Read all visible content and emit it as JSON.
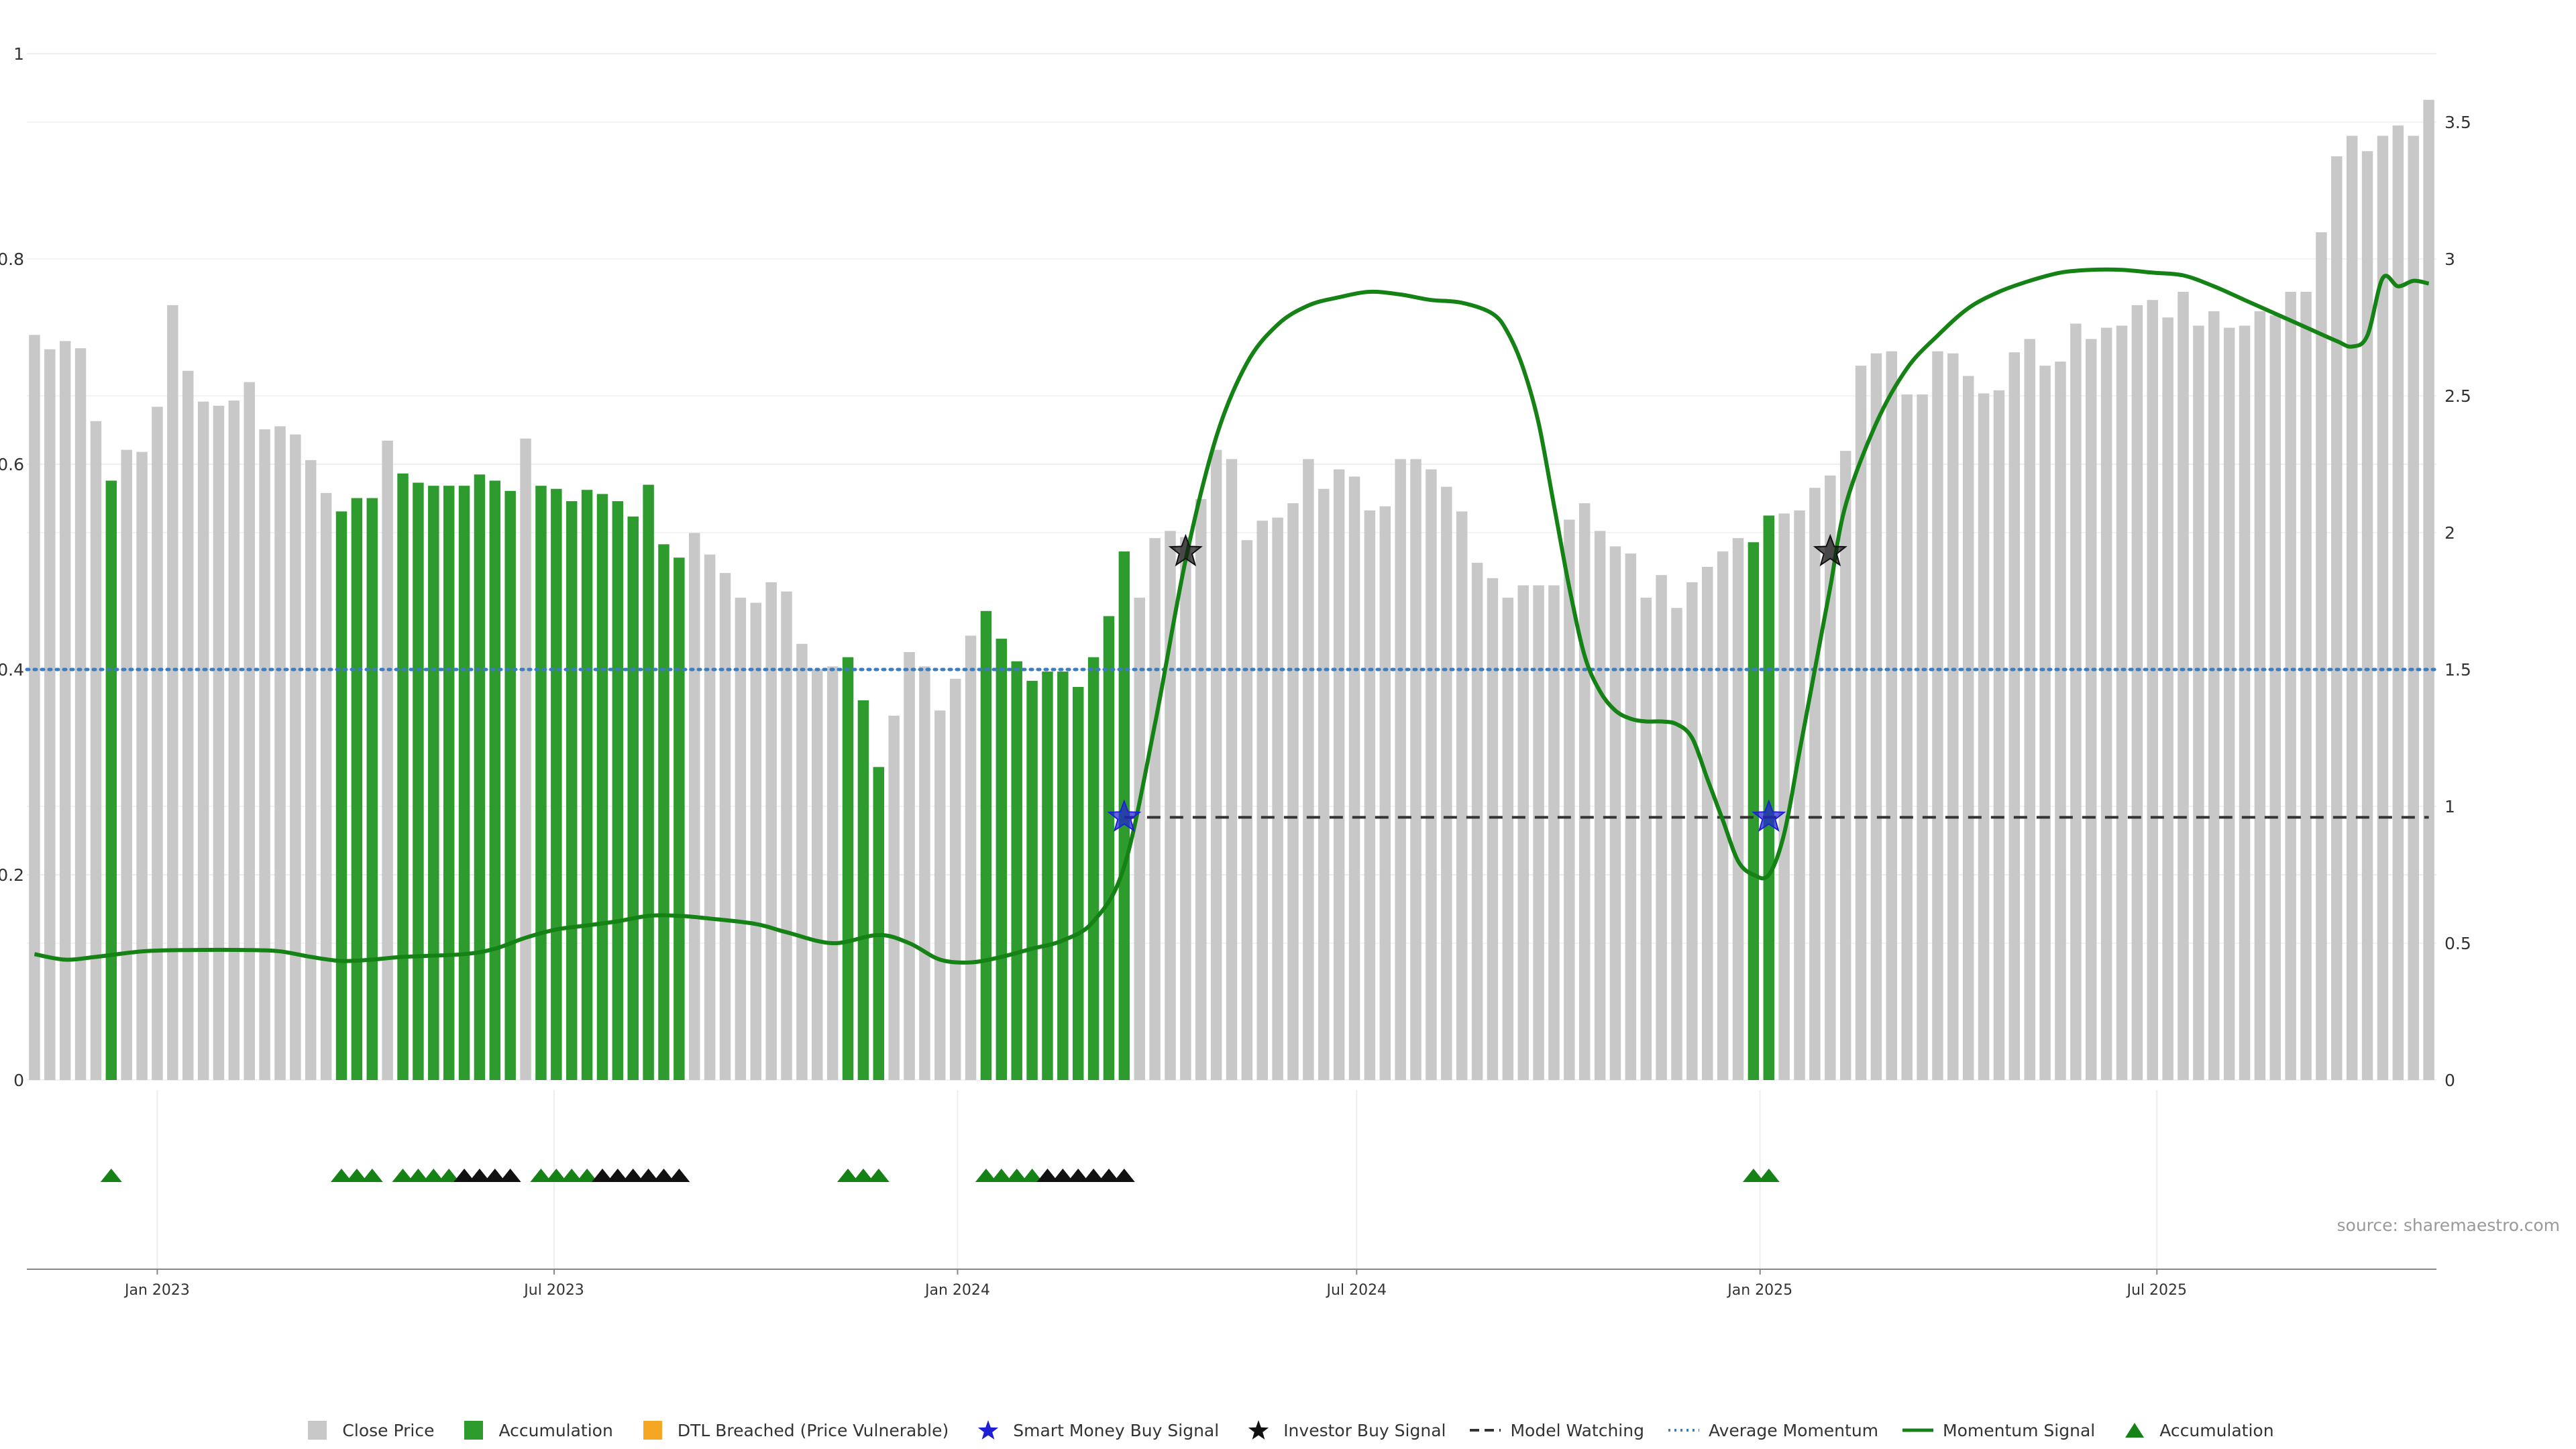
{
  "source_label": "source: sharemaestro.com",
  "colors": {
    "close": "#c8c8c8",
    "accumulation": "#2e9b2e",
    "dtl": "#f5a623",
    "smart_money": "#1f1fd6",
    "investor": "#111111",
    "model_watching": "#333333",
    "avg_momentum": "#3b7dbf",
    "momentum": "#148214",
    "triangle_acc": "#148214",
    "triangle_black": "#111111"
  },
  "legend": [
    {
      "key": "close",
      "label": "Close Price",
      "icon": "square-icon"
    },
    {
      "key": "accumulation",
      "label": "Accumulation",
      "icon": "square-icon"
    },
    {
      "key": "dtl",
      "label": "DTL Breached (Price Vulnerable)",
      "icon": "square-icon"
    },
    {
      "key": "smart_money",
      "label": "Smart Money Buy Signal",
      "icon": "star-icon"
    },
    {
      "key": "investor",
      "label": "Investor Buy Signal",
      "icon": "star-icon"
    },
    {
      "key": "model_watching",
      "label": "Model Watching",
      "icon": "dashed-line-icon"
    },
    {
      "key": "avg_momentum",
      "label": "Average Momentum",
      "icon": "dotted-line-icon"
    },
    {
      "key": "momentum",
      "label": "Momentum Signal",
      "icon": "line-icon"
    },
    {
      "key": "triangle_acc",
      "label": "Accumulation",
      "icon": "triangle-icon"
    }
  ],
  "chart_data": {
    "type": "bar",
    "title": "",
    "xlabel": "",
    "ylabel": "",
    "x_range": [
      "2022-11-06",
      "2025-10-26"
    ],
    "left_ylim": [
      0,
      1
    ],
    "left_yticks": [
      "0",
      "0.2",
      "0.4",
      "0.6",
      "0.8",
      "1"
    ],
    "right_ylim": [
      0,
      3.75
    ],
    "right_yticks": [
      "0",
      "0.5",
      "1",
      "1.5",
      "2",
      "2.5",
      "3",
      "3.5"
    ],
    "x_ticks": [
      {
        "date": "2023-01-01",
        "label": "Jan 2023"
      },
      {
        "date": "2023-07-01",
        "label": "Jul 2023"
      },
      {
        "date": "2024-01-01",
        "label": "Jan 2024"
      },
      {
        "date": "2024-07-01",
        "label": "Jul 2024"
      },
      {
        "date": "2025-01-01",
        "label": "Jan 2025"
      },
      {
        "date": "2025-07-01",
        "label": "Jul 2025"
      }
    ],
    "grid": true,
    "legend_position": "bottom-center",
    "bars": {
      "start_date": "2022-11-06",
      "interval_days": 7,
      "values": [
        0.726,
        0.712,
        0.72,
        0.713,
        0.642,
        0.584,
        0.614,
        0.612,
        0.656,
        0.755,
        0.691,
        0.661,
        0.657,
        0.662,
        0.68,
        0.634,
        0.637,
        0.629,
        0.604,
        0.572,
        0.554,
        0.567,
        0.567,
        0.623,
        0.591,
        0.582,
        0.579,
        0.579,
        0.579,
        0.59,
        0.584,
        0.574,
        0.625,
        0.579,
        0.576,
        0.564,
        0.575,
        0.571,
        0.564,
        0.549,
        0.58,
        0.522,
        0.509,
        0.533,
        0.512,
        0.494,
        0.47,
        0.465,
        0.485,
        0.476,
        0.425,
        0.4,
        0.403,
        0.412,
        0.37,
        0.305,
        0.355,
        0.417,
        0.403,
        0.36,
        0.391,
        0.433,
        0.457,
        0.43,
        0.408,
        0.389,
        0.398,
        0.398,
        0.383,
        0.412,
        0.452,
        0.515,
        0.47,
        0.528,
        0.535,
        0.529,
        0.566,
        0.614,
        0.605,
        0.526,
        0.545,
        0.548,
        0.562,
        0.605,
        0.576,
        0.595,
        0.588,
        0.555,
        0.559,
        0.605,
        0.605,
        0.595,
        0.578,
        0.554,
        0.504,
        0.489,
        0.47,
        0.482,
        0.482,
        0.482,
        0.546,
        0.562,
        0.535,
        0.52,
        0.513,
        0.47,
        0.492,
        0.46,
        0.485,
        0.5,
        0.515,
        0.528,
        0.524,
        0.55,
        0.552,
        0.555,
        0.577,
        0.589,
        0.613,
        0.696,
        0.708,
        0.71,
        0.668,
        0.668,
        0.71,
        0.708,
        0.686,
        0.669,
        0.672,
        0.709,
        0.722,
        0.696,
        0.7,
        0.737,
        0.722,
        0.733,
        0.735,
        0.755,
        0.76,
        0.743,
        0.768,
        0.735,
        0.749,
        0.733,
        0.735,
        0.749,
        0.745,
        0.768,
        0.768,
        0.826,
        0.9,
        0.92,
        0.905,
        0.92,
        0.93,
        0.92,
        0.955
      ],
      "accumulation_indices": [
        5,
        20,
        21,
        22,
        24,
        25,
        26,
        27,
        28,
        29,
        30,
        31,
        33,
        34,
        35,
        36,
        37,
        38,
        39,
        40,
        41,
        42,
        53,
        54,
        55,
        62,
        63,
        64,
        65,
        66,
        67,
        68,
        69,
        70,
        71,
        112,
        113
      ]
    },
    "momentum_signal": {
      "values": [
        [
          0,
          0.46
        ],
        [
          2,
          0.44
        ],
        [
          4,
          0.45
        ],
        [
          7,
          0.47
        ],
        [
          10,
          0.475
        ],
        [
          14,
          0.475
        ],
        [
          16,
          0.47
        ],
        [
          18,
          0.45
        ],
        [
          20,
          0.435
        ],
        [
          22,
          0.44
        ],
        [
          24,
          0.45
        ],
        [
          28,
          0.46
        ],
        [
          30,
          0.48
        ],
        [
          32,
          0.52
        ],
        [
          34,
          0.55
        ],
        [
          36,
          0.565
        ],
        [
          38,
          0.58
        ],
        [
          40,
          0.6
        ],
        [
          42,
          0.6
        ],
        [
          44,
          0.59
        ],
        [
          47,
          0.57
        ],
        [
          49,
          0.54
        ],
        [
          52,
          0.5
        ],
        [
          55,
          0.53
        ],
        [
          57,
          0.5
        ],
        [
          59,
          0.44
        ],
        [
          61,
          0.43
        ],
        [
          63,
          0.45
        ],
        [
          65,
          0.48
        ],
        [
          67,
          0.51
        ],
        [
          69,
          0.58
        ],
        [
          71,
          0.78
        ],
        [
          73,
          1.3
        ],
        [
          75,
          1.9
        ],
        [
          77,
          2.35
        ],
        [
          79,
          2.62
        ],
        [
          81,
          2.76
        ],
        [
          83,
          2.83
        ],
        [
          85,
          2.86
        ],
        [
          87,
          2.88
        ],
        [
          89,
          2.87
        ],
        [
          91,
          2.85
        ],
        [
          93,
          2.84
        ],
        [
          95,
          2.8
        ],
        [
          96,
          2.73
        ],
        [
          97,
          2.6
        ],
        [
          98,
          2.4
        ],
        [
          99,
          2.1
        ],
        [
          100,
          1.8
        ],
        [
          101,
          1.55
        ],
        [
          102,
          1.42
        ],
        [
          103,
          1.35
        ],
        [
          104,
          1.32
        ],
        [
          105,
          1.31
        ],
        [
          106,
          1.31
        ],
        [
          107,
          1.3
        ],
        [
          108,
          1.25
        ],
        [
          109,
          1.1
        ],
        [
          110,
          0.95
        ],
        [
          111,
          0.8
        ],
        [
          112,
          0.75
        ],
        [
          113,
          0.75
        ],
        [
          114,
          0.9
        ],
        [
          115,
          1.2
        ],
        [
          116,
          1.5
        ],
        [
          117,
          1.8
        ],
        [
          118,
          2.1
        ],
        [
          120,
          2.4
        ],
        [
          122,
          2.6
        ],
        [
          124,
          2.72
        ],
        [
          126,
          2.82
        ],
        [
          128,
          2.88
        ],
        [
          130,
          2.92
        ],
        [
          132,
          2.95
        ],
        [
          134,
          2.96
        ],
        [
          136,
          2.96
        ],
        [
          138,
          2.95
        ],
        [
          140,
          2.94
        ],
        [
          142,
          2.9
        ],
        [
          144,
          2.85
        ],
        [
          146,
          2.8
        ],
        [
          148,
          2.75
        ],
        [
          150,
          2.7
        ],
        [
          151,
          2.68
        ],
        [
          152,
          2.72
        ],
        [
          153,
          2.93
        ],
        [
          154,
          2.9
        ],
        [
          155,
          2.92
        ],
        [
          156,
          2.91
        ]
      ]
    },
    "average_momentum": 1.5,
    "model_watching": {
      "level": 0.96,
      "start_index": 71,
      "end_index": 156
    },
    "smart_money_buy": [
      [
        71,
        0.96
      ],
      [
        113,
        0.96
      ]
    ],
    "investor_buy": [
      [
        75,
        1.93
      ],
      [
        117,
        1.93
      ]
    ],
    "signal_triangles": {
      "accumulation": [
        5,
        20,
        21,
        22,
        24,
        25,
        26,
        27,
        33,
        34,
        35,
        36,
        53,
        54,
        55,
        62,
        63,
        64,
        65,
        112,
        113
      ],
      "black": [
        28,
        29,
        30,
        31,
        37,
        38,
        39,
        40,
        41,
        42,
        66,
        67,
        68,
        69,
        70,
        71
      ]
    }
  }
}
